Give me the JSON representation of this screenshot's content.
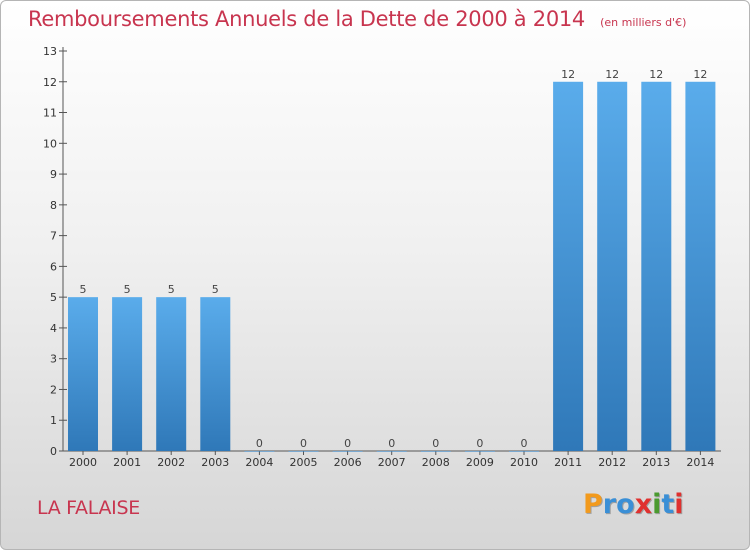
{
  "chart_data": {
    "type": "bar",
    "title": "Remboursements Annuels de la Dette de 2000 à 2014",
    "unit": "(en milliers d'€)",
    "xlabel": "",
    "ylabel": "",
    "categories": [
      "2000",
      "2001",
      "2002",
      "2003",
      "2004",
      "2005",
      "2006",
      "2007",
      "2008",
      "2009",
      "2010",
      "2011",
      "2012",
      "2013",
      "2014"
    ],
    "values": [
      5,
      5,
      5,
      5,
      0,
      0,
      0,
      0,
      0,
      0,
      0,
      12,
      12,
      12,
      12
    ],
    "ylim": [
      0,
      13
    ],
    "yticks": [
      0,
      1,
      2,
      3,
      4,
      5,
      6,
      7,
      8,
      9,
      10,
      11,
      12,
      13
    ],
    "grid": false,
    "bar_color": "#4da3e3"
  },
  "commune": "LA FALAISE",
  "logo": {
    "letters": [
      "P",
      "r",
      "o",
      "x",
      "i",
      "t",
      "i"
    ],
    "colors": [
      "#f29a1d",
      "#3a8fd6",
      "#3a8fd6",
      "#e0312f",
      "#4a9a2f",
      "#3a8fd6",
      "#e0312f"
    ]
  }
}
